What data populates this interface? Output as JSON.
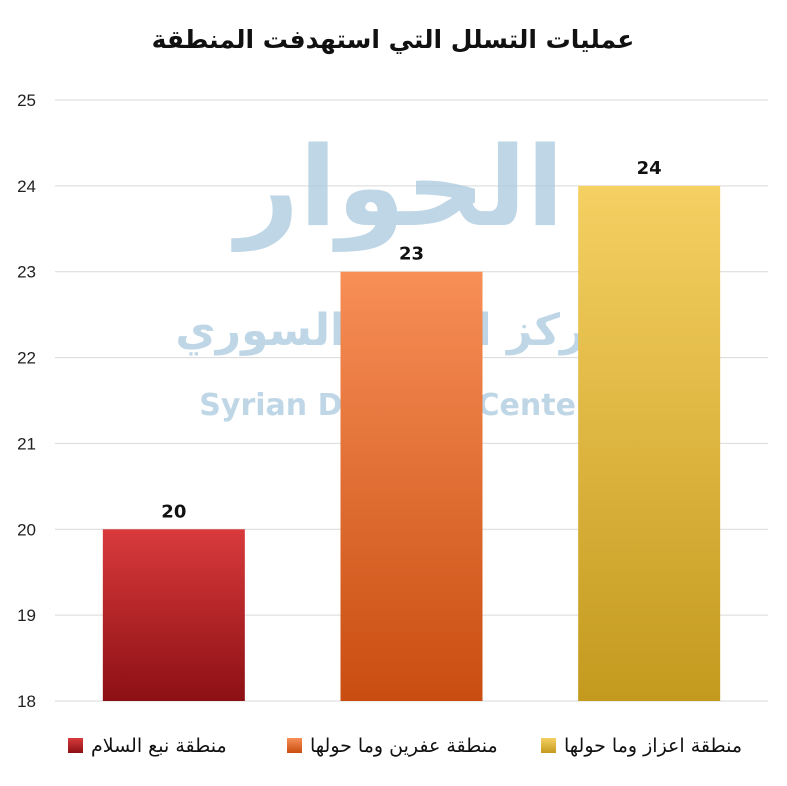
{
  "chart_data": {
    "type": "bar",
    "title": "عمليات التسلل التي استهدفت المنطقة",
    "xlabel": "",
    "ylabel": "",
    "categories": [
      "منطقة نبع السلام",
      "منطقة عفرين وما حولها",
      "منطقة اعزاز وما حولها"
    ],
    "values": [
      20,
      23,
      24
    ],
    "data_labels": [
      "20",
      "23",
      "24"
    ],
    "ylim": [
      18,
      25
    ],
    "yticks": [
      "18",
      "19",
      "20",
      "21",
      "22",
      "23",
      "24",
      "25"
    ],
    "grid": true,
    "legend_position": "bottom",
    "bar_colors": [
      {
        "top": "#d93a3c",
        "bottom": "#8c1014"
      },
      {
        "top": "#f78f57",
        "bottom": "#c94d10"
      },
      {
        "top": "#f5d062",
        "bottom": "#c49a1e"
      }
    ]
  },
  "watermark": {
    "arabic_logo": "الحوار",
    "arabic_sub": "مركز الحوار السوري",
    "english_text": "Syrian Dialogue Center",
    "color": "#a9c9de"
  }
}
